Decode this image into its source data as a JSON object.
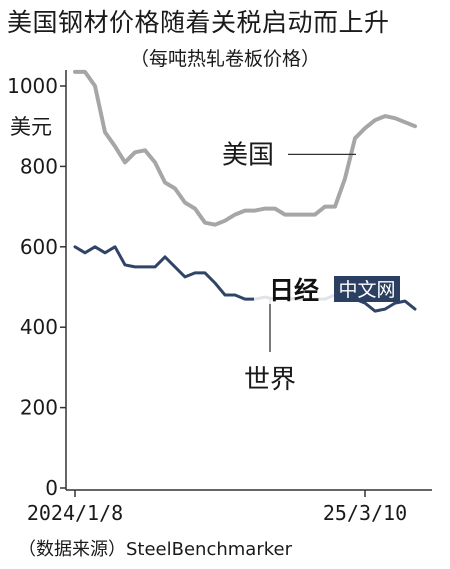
{
  "title": "美国钢材价格随着关税启动而上升",
  "subtitle": "（每吨热轧卷板价格）",
  "source": "（数据来源）SteelBenchmarker",
  "logo": {
    "main": "日经",
    "sub": "中文网"
  },
  "colors": {
    "us": "#a6a6a6",
    "world": "#2f4466",
    "axis": "#333333"
  },
  "chart_data": {
    "type": "line",
    "title": "美国钢材价格随着关税启动而上升",
    "subtitle": "（每吨热轧卷板价格）",
    "ylabel": "美元",
    "ylim": [
      0,
      1050
    ],
    "yticks": [
      0,
      200,
      400,
      600,
      800,
      1000
    ],
    "xlim": [
      0,
      35
    ],
    "xtick_labels": [
      {
        "x": 0,
        "label": "2024/1/8"
      },
      {
        "x": 29,
        "label": "25/3/10"
      }
    ],
    "grid": false,
    "series": [
      {
        "name": "美国",
        "x": [
          0,
          1,
          2,
          3,
          4,
          5,
          6,
          7,
          8,
          9,
          10,
          11,
          12,
          13,
          14,
          15,
          16,
          17,
          18,
          19,
          20,
          21,
          22,
          23,
          24,
          25,
          26,
          27,
          28,
          29,
          30,
          31,
          32,
          33,
          34
        ],
        "values": [
          1035,
          1035,
          1000,
          885,
          850,
          810,
          835,
          840,
          810,
          760,
          745,
          710,
          695,
          660,
          655,
          665,
          680,
          690,
          690,
          695,
          695,
          680,
          680,
          680,
          680,
          700,
          700,
          770,
          870,
          895,
          915,
          925,
          920,
          910,
          900
        ]
      },
      {
        "name": "世界",
        "x": [
          0,
          1,
          2,
          3,
          4,
          5,
          6,
          7,
          8,
          9,
          10,
          11,
          12,
          13,
          14,
          15,
          16,
          17,
          18,
          19,
          20,
          21,
          22,
          23,
          24,
          25,
          26,
          27,
          28,
          29,
          30,
          31,
          32,
          33,
          34
        ],
        "values": [
          600,
          585,
          600,
          585,
          600,
          555,
          550,
          550,
          550,
          575,
          550,
          525,
          535,
          535,
          510,
          480,
          480,
          470,
          470,
          475,
          470,
          475,
          470,
          470,
          470,
          470,
          480,
          470,
          470,
          460,
          440,
          445,
          460,
          465,
          445
        ]
      }
    ]
  }
}
